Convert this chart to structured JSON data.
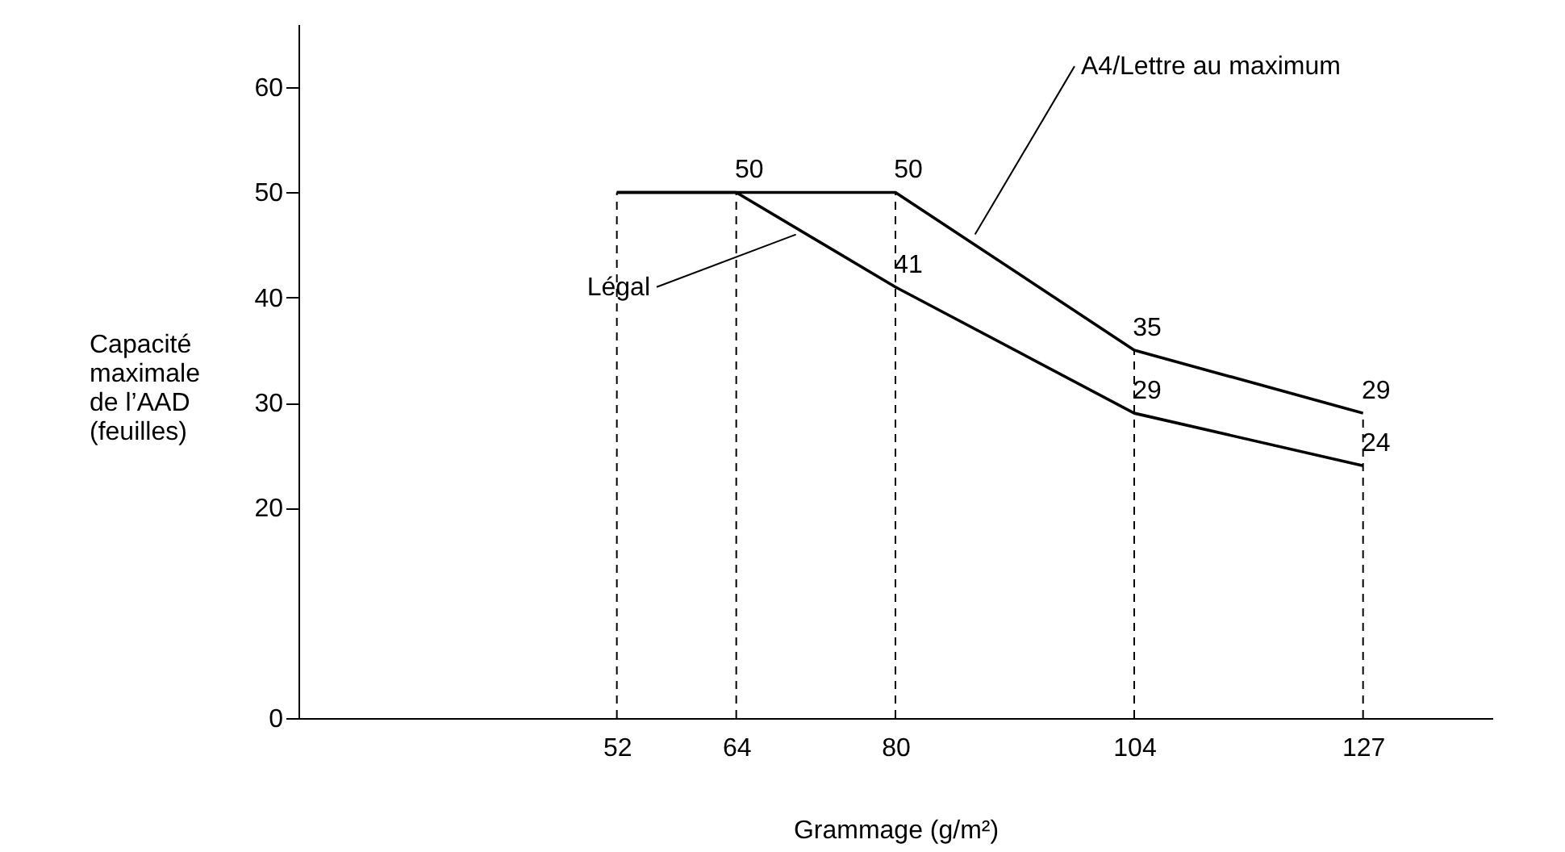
{
  "chart_data": {
    "type": "line",
    "xlabel": "Grammage (g/m²)",
    "ylabel": "Capacité\nmaximale\nde l’AAD\n(feuilles)",
    "x": [
      52,
      64,
      80,
      104,
      127
    ],
    "series": [
      {
        "color": "#000000",
        "values": [
          50,
          50,
          41,
          29,
          24
        ],
        "value_labels": [
          null,
          "50",
          "41",
          "29",
          "24"
        ]
      },
      {
        "color": "#000000",
        "values": [
          50,
          50,
          50,
          35,
          29
        ],
        "value_labels": [
          null,
          null,
          "50",
          "35",
          "29"
        ]
      }
    ],
    "xlim": [
      20,
      140
    ],
    "xticks": [
      52,
      64,
      80,
      104,
      127
    ],
    "ylim": [
      0,
      66
    ],
    "yticks": [
      0,
      20,
      30,
      40,
      50,
      60
    ],
    "ref_lines": [
      {
        "axis": "x",
        "value": 52,
        "line_style": "dashed"
      },
      {
        "axis": "x",
        "value": 64,
        "line_style": "dashed"
      },
      {
        "axis": "x",
        "value": 80,
        "line_style": "dashed"
      },
      {
        "axis": "x",
        "value": 104,
        "line_style": "dashed"
      },
      {
        "axis": "x",
        "value": 127,
        "line_style": "dashed"
      }
    ],
    "annotations": [
      {
        "text": "A4/Lettre au maximum",
        "x": 88,
        "y": 46
      },
      {
        "text": "Légal",
        "x": 70,
        "y": 46
      }
    ],
    "grid": false,
    "marker": "none",
    "line_style": "solid"
  }
}
